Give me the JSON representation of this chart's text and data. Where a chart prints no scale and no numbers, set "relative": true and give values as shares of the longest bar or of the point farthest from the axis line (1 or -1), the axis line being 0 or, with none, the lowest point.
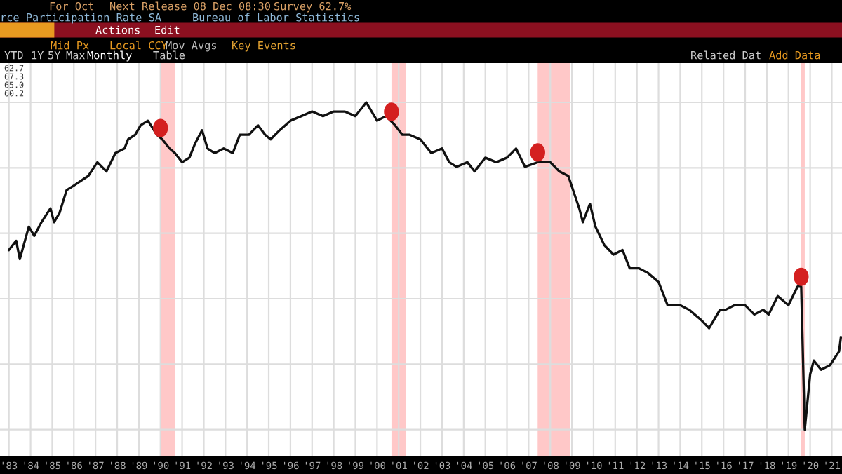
{
  "chart_data": {
    "type": "line",
    "relative": true,
    "x": [
      "1983-07",
      "1983-11",
      "1984-01",
      "1984-06",
      "1984-09",
      "1985-01",
      "1985-06",
      "1985-08",
      "1985-11",
      "1986-03",
      "1986-07",
      "1986-11",
      "1987-03",
      "1987-08",
      "1988-01",
      "1988-06",
      "1988-11",
      "1989-01",
      "1989-05",
      "1989-08",
      "1989-12",
      "1990-05",
      "1990-08",
      "1990-12",
      "1991-03",
      "1991-07",
      "1991-11",
      "1992-02",
      "1992-06",
      "1992-09",
      "1993-01",
      "1993-06",
      "1993-11",
      "1994-03",
      "1994-08",
      "1995-01",
      "1995-05",
      "1995-08",
      "1996-01",
      "1996-07",
      "1997-01",
      "1997-07",
      "1998-01",
      "1998-07",
      "1999-01",
      "1999-07",
      "2000-01",
      "2000-07",
      "2000-12",
      "2001-05",
      "2001-09",
      "2002-01",
      "2002-07",
      "2003-01",
      "2003-07",
      "2003-11",
      "2004-03",
      "2004-09",
      "2005-01",
      "2005-07",
      "2006-01",
      "2006-07",
      "2006-12",
      "2007-05",
      "2007-12",
      "2008-07",
      "2008-12",
      "2009-05",
      "2009-11",
      "2010-01",
      "2010-05",
      "2010-08",
      "2011-01",
      "2011-06",
      "2011-11",
      "2012-03",
      "2012-08",
      "2013-01",
      "2013-07",
      "2013-12",
      "2014-07",
      "2014-12",
      "2015-06",
      "2015-11",
      "2016-05",
      "2016-08",
      "2017-01",
      "2017-07",
      "2017-12",
      "2018-05",
      "2018-08",
      "2019-01",
      "2019-07",
      "2019-12",
      "2020-02",
      "2020-04",
      "2020-07",
      "2020-09",
      "2021-01",
      "2021-06",
      "2021-11",
      "2021-12"
    ],
    "series": [
      {
        "color": "#111111",
        "values": [
          0.549,
          0.577,
          0.521,
          0.62,
          0.592,
          0.634,
          0.676,
          0.634,
          0.662,
          0.732,
          0.746,
          0.761,
          0.775,
          0.817,
          0.789,
          0.845,
          0.859,
          0.887,
          0.901,
          0.93,
          0.944,
          0.901,
          0.887,
          0.859,
          0.845,
          0.817,
          0.831,
          0.873,
          0.915,
          0.859,
          0.845,
          0.859,
          0.845,
          0.901,
          0.901,
          0.93,
          0.901,
          0.887,
          0.915,
          0.944,
          0.958,
          0.972,
          0.958,
          0.972,
          0.972,
          0.958,
          1,
          0.944,
          0.958,
          0.93,
          0.901,
          0.901,
          0.887,
          0.845,
          0.859,
          0.817,
          0.803,
          0.817,
          0.789,
          0.831,
          0.817,
          0.831,
          0.859,
          0.803,
          0.817,
          0.817,
          0.789,
          0.775,
          0.676,
          0.634,
          0.69,
          0.62,
          0.563,
          0.535,
          0.549,
          0.493,
          0.493,
          0.479,
          0.451,
          0.38,
          0.38,
          0.366,
          0.338,
          0.31,
          0.366,
          0.366,
          0.38,
          0.38,
          0.352,
          0.366,
          0.352,
          0.408,
          0.38,
          0.437,
          0.437,
          0,
          0.169,
          0.211,
          0.183,
          0.197,
          0.239,
          0.282
        ]
      }
    ],
    "xlim": [
      "1983-02-01",
      "2021-12-20"
    ],
    "xticks": [
      {
        "value": "1983-07",
        "label": "'83"
      },
      {
        "value": "1984-07",
        "label": "'84"
      },
      {
        "value": "1985-07",
        "label": "'85"
      },
      {
        "value": "1986-07",
        "label": "'86"
      },
      {
        "value": "1987-07",
        "label": "'87"
      },
      {
        "value": "1988-07",
        "label": "'88"
      },
      {
        "value": "1989-07",
        "label": "'89"
      },
      {
        "value": "1990-07",
        "label": "'90"
      },
      {
        "value": "1991-07",
        "label": "'91"
      },
      {
        "value": "1992-07",
        "label": "'92"
      },
      {
        "value": "1993-07",
        "label": "'93"
      },
      {
        "value": "1994-07",
        "label": "'94"
      },
      {
        "value": "1995-07",
        "label": "'95"
      },
      {
        "value": "1996-07",
        "label": "'96"
      },
      {
        "value": "1997-07",
        "label": "'97"
      },
      {
        "value": "1998-07",
        "label": "'98"
      },
      {
        "value": "1999-07",
        "label": "'99"
      },
      {
        "value": "2000-07",
        "label": "'00"
      },
      {
        "value": "2001-07",
        "label": "'01"
      },
      {
        "value": "2002-07",
        "label": "'02"
      },
      {
        "value": "2003-07",
        "label": "'03"
      },
      {
        "value": "2004-07",
        "label": "'04"
      },
      {
        "value": "2005-07",
        "label": "'05"
      },
      {
        "value": "2006-07",
        "label": "'06"
      },
      {
        "value": "2007-07",
        "label": "'07"
      },
      {
        "value": "2008-07",
        "label": "'08"
      },
      {
        "value": "2009-07",
        "label": "'09"
      },
      {
        "value": "2010-07",
        "label": "'10"
      },
      {
        "value": "2011-07",
        "label": "'11"
      },
      {
        "value": "2012-07",
        "label": "'12"
      },
      {
        "value": "2013-07",
        "label": "'13"
      },
      {
        "value": "2014-07",
        "label": "'14"
      },
      {
        "value": "2015-07",
        "label": "'15"
      },
      {
        "value": "2016-07",
        "label": "'16"
      },
      {
        "value": "2017-07",
        "label": "'17"
      },
      {
        "value": "2018-07",
        "label": "'18"
      },
      {
        "value": "2019-07",
        "label": "'19"
      },
      {
        "value": "2020-07",
        "label": "'20"
      },
      {
        "value": "2021-07",
        "label": "'21"
      }
    ],
    "bands": [
      {
        "axis": "x",
        "from": "1990-07",
        "to": "1991-03",
        "color": "#ffc8c8"
      },
      {
        "axis": "x",
        "from": "2001-03",
        "to": "2001-11",
        "color": "#ffc8c8"
      },
      {
        "axis": "x",
        "from": "2007-12",
        "to": "2009-06",
        "color": "#ffc8c8"
      },
      {
        "axis": "x",
        "from": "2020-02",
        "to": "2020-04",
        "color": "#ffc8c8"
      }
    ],
    "grid": true,
    "legend": false,
    "tick_labels": "x",
    "annotations": [
      "For Oct",
      "Next Release 08 Dec 08:30",
      "Survey 62.7%",
      "rce Participation Rate SA",
      "Bureau of Labor Statistics",
      "Actions",
      "Edit",
      "Mid Px",
      "Local CCY",
      "Mov Avgs",
      "Key Events",
      "YTD",
      "1Y",
      "5Y",
      "Max",
      "Monthly",
      "Table",
      "Related Dat",
      "Add Data",
      "62.7",
      "67.3",
      "65.0",
      "60.2"
    ]
  }
}
